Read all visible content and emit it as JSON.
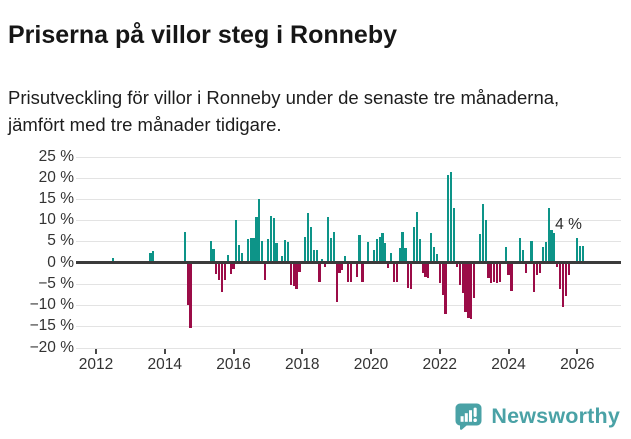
{
  "header": {
    "title": "Priserna på villor steg i Ronneby",
    "subtitle": "Prisutveckling för villor i Ronneby under de senaste tre månaderna, jämfört med tre månader tidigare."
  },
  "chart_data": {
    "type": "bar",
    "title": "Priserna på villor steg i Ronneby",
    "xlabel": "",
    "ylabel": "",
    "unit": "%",
    "frequency": "monthly",
    "x_start": "2012-01",
    "x_end": "2026-03",
    "ylim": [
      -20,
      25
    ],
    "ytick_step": 5,
    "grid": true,
    "legend": false,
    "ytick_labels": [
      "25 %",
      "20 %",
      "15 %",
      "10 %",
      "5 %",
      "0 %",
      "−5 %",
      "−10 %",
      "−15 %",
      "−20 %"
    ],
    "xtick_labels": [
      "2012",
      "2014",
      "2016",
      "2018",
      "2020",
      "2022",
      "2024",
      "2026"
    ],
    "values": [
      0,
      0,
      0,
      0,
      0,
      0,
      1.1,
      0,
      0,
      0,
      0,
      0,
      0,
      0,
      0,
      0,
      0,
      0,
      0,
      2.3,
      2.8,
      0,
      0,
      0,
      0,
      0,
      0,
      0,
      0,
      0,
      0,
      7.3,
      -10.0,
      -15.4,
      0,
      0,
      0,
      0,
      0,
      0,
      5.0,
      3.2,
      -2.7,
      -4.1,
      -6.8,
      -4.1,
      1.8,
      -2.7,
      -1.6,
      10.1,
      4.2,
      2.4,
      0,
      5.5,
      5.8,
      5.8,
      10.7,
      15.0,
      5.1,
      -4.1,
      5.5,
      11.0,
      10.5,
      4.6,
      0,
      1.6,
      5.4,
      4.8,
      -5.2,
      -5.4,
      -6.3,
      -2.3,
      0,
      6.1,
      11.7,
      8.3,
      3.0,
      3.0,
      -4.5,
      0.9,
      -0.9,
      10.7,
      5.8,
      7.3,
      -9.3,
      -2.5,
      -1.7,
      1.6,
      -4.5,
      -4.5,
      0,
      -3.4,
      6.5,
      -4.5,
      0,
      4.8,
      0,
      3.0,
      5.6,
      6.0,
      6.9,
      4.6,
      -1.3,
      2.2,
      -4.5,
      -4.5,
      3.4,
      7.3,
      3.5,
      -5.9,
      -6.1,
      8.3,
      12.0,
      5.6,
      -2.5,
      -3.4,
      -3.7,
      6.9,
      3.8,
      2.0,
      -4.9,
      -7.6,
      -12.2,
      20.7,
      21.3,
      13.0,
      -1.0,
      -5.3,
      -7.2,
      -11.6,
      -13.1,
      -13.2,
      -8.4,
      0,
      6.7,
      13.8,
      10.1,
      -3.7,
      -4.9,
      -4.6,
      -4.9,
      -4.6,
      0,
      3.8,
      -2.9,
      -6.7,
      0,
      0,
      5.9,
      3.0,
      -2.5,
      0,
      5.1,
      -6.8,
      -2.9,
      -2.5,
      3.8,
      4.9,
      13.0,
      7.7,
      6.9,
      -1.1,
      -6.3,
      -10.4,
      -7.9,
      -2.9,
      0,
      0,
      5.8,
      4.0,
      4.0
    ],
    "annotation": {
      "text": "4 %",
      "x": "2026-02"
    },
    "colors": {
      "positive": "#0d9488",
      "negative": "#9b0c47",
      "zero_line": "#3b3b3b",
      "grid": "#e3e3e3",
      "axis_text": "#333333"
    }
  },
  "footer": {
    "brand": "Newsworthy",
    "brand_color": "#4aa2a6",
    "logo_icon": "bar-chart-speech-bubble-icon"
  }
}
